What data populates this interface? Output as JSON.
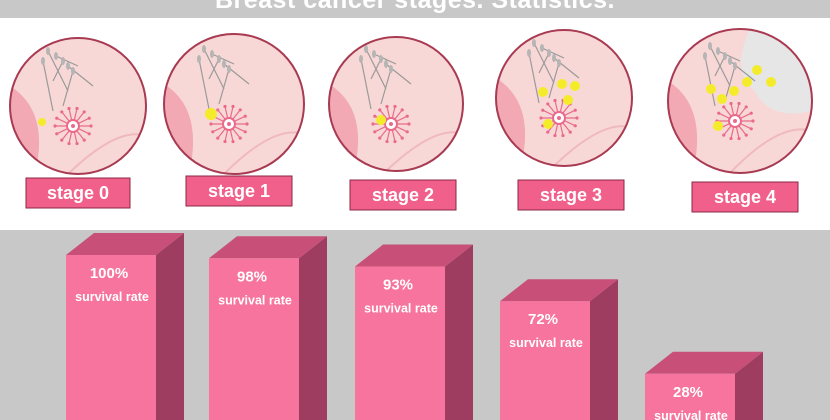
{
  "title": "Breast cancer stages. Statistics.",
  "colors": {
    "title_bar": "#c8c8c8",
    "bottom_panel": "#c8c8c8",
    "circle_fill": "#f8d8d6",
    "circle_stroke": "#a83a52",
    "tissue": "#f2a9b3",
    "tumor": "#f4ec2a",
    "metastasis": "#e6e6e6",
    "nerve": "#9a9a9a",
    "label_fill": "#f0608a",
    "bar_front": "#f6749d",
    "bar_top": "#c84f78",
    "bar_side": "#9e3d60"
  },
  "icons": {
    "stage_illustration": "breast-tissue-cross-section-icon",
    "tumor": "tumor-dot-icon"
  },
  "stages": [
    {
      "label": "stage 0",
      "tumor_count": 1
    },
    {
      "label": "stage 1",
      "tumor_count": 1
    },
    {
      "label": "stage 2",
      "tumor_count": 1
    },
    {
      "label": "stage 3",
      "tumor_count": 5
    },
    {
      "label": "stage 4",
      "tumor_count": 7
    }
  ],
  "chart_data": {
    "type": "bar",
    "title": "Breast cancer stages. Statistics.",
    "categories": [
      "stage 0",
      "stage 1",
      "stage 2",
      "stage 3",
      "stage 4"
    ],
    "values": [
      100,
      98,
      93,
      72,
      28
    ],
    "value_labels": [
      "100%",
      "98%",
      "93%",
      "72%",
      "28%"
    ],
    "sub_label": "survival rate",
    "unit": "%",
    "ylim": [
      0,
      100
    ],
    "grid": false,
    "legend": "none",
    "style": "3d-bar"
  }
}
